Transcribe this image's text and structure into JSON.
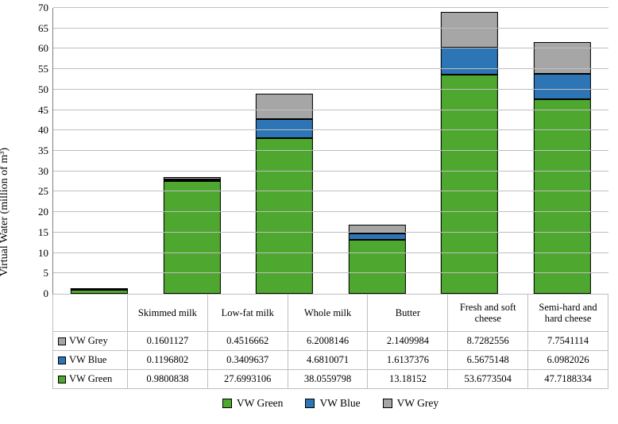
{
  "chart": {
    "type": "stacked-bar",
    "ylabel": "Virtual Water (million of m³)",
    "ylabel_fontsize": 14,
    "ylim": [
      0,
      70
    ],
    "ytick_step": 5,
    "yticks": [
      0,
      5,
      10,
      15,
      20,
      25,
      30,
      35,
      40,
      45,
      50,
      55,
      60,
      65,
      70
    ],
    "categories": [
      "Skimmed milk",
      "Low-fat milk",
      "Whole milk",
      "Butter",
      "Fresh and soft cheese",
      "Semi-hard and hard cheese"
    ],
    "series": [
      {
        "key": "grey",
        "label": "VW Grey",
        "color": "#a6a6a6"
      },
      {
        "key": "blue",
        "label": "VW Blue",
        "color": "#2e75b6"
      },
      {
        "key": "green",
        "label": "VW Green",
        "color": "#4ea72e"
      }
    ],
    "stack_order": [
      "green",
      "blue",
      "grey"
    ],
    "data": {
      "grey": [
        0.1601127,
        0.4516662,
        6.2008146,
        2.1409984,
        8.7282556,
        7.7541114
      ],
      "blue": [
        0.1196802,
        0.3409637,
        4.6810071,
        1.6137376,
        6.5675148,
        6.0982026
      ],
      "green": [
        0.9800838,
        27.6993106,
        38.0559798,
        13.18152,
        53.6773504,
        47.7188334
      ]
    },
    "bar_width_ratio": 0.62,
    "background_color": "#ffffff",
    "grid_color": "#bfbfbf",
    "axis_color": "#7f7f7f",
    "segment_border_color": "#000000",
    "label_fontsize": 12.5,
    "tick_fontsize": 13,
    "legend_fontsize": 13.5
  }
}
